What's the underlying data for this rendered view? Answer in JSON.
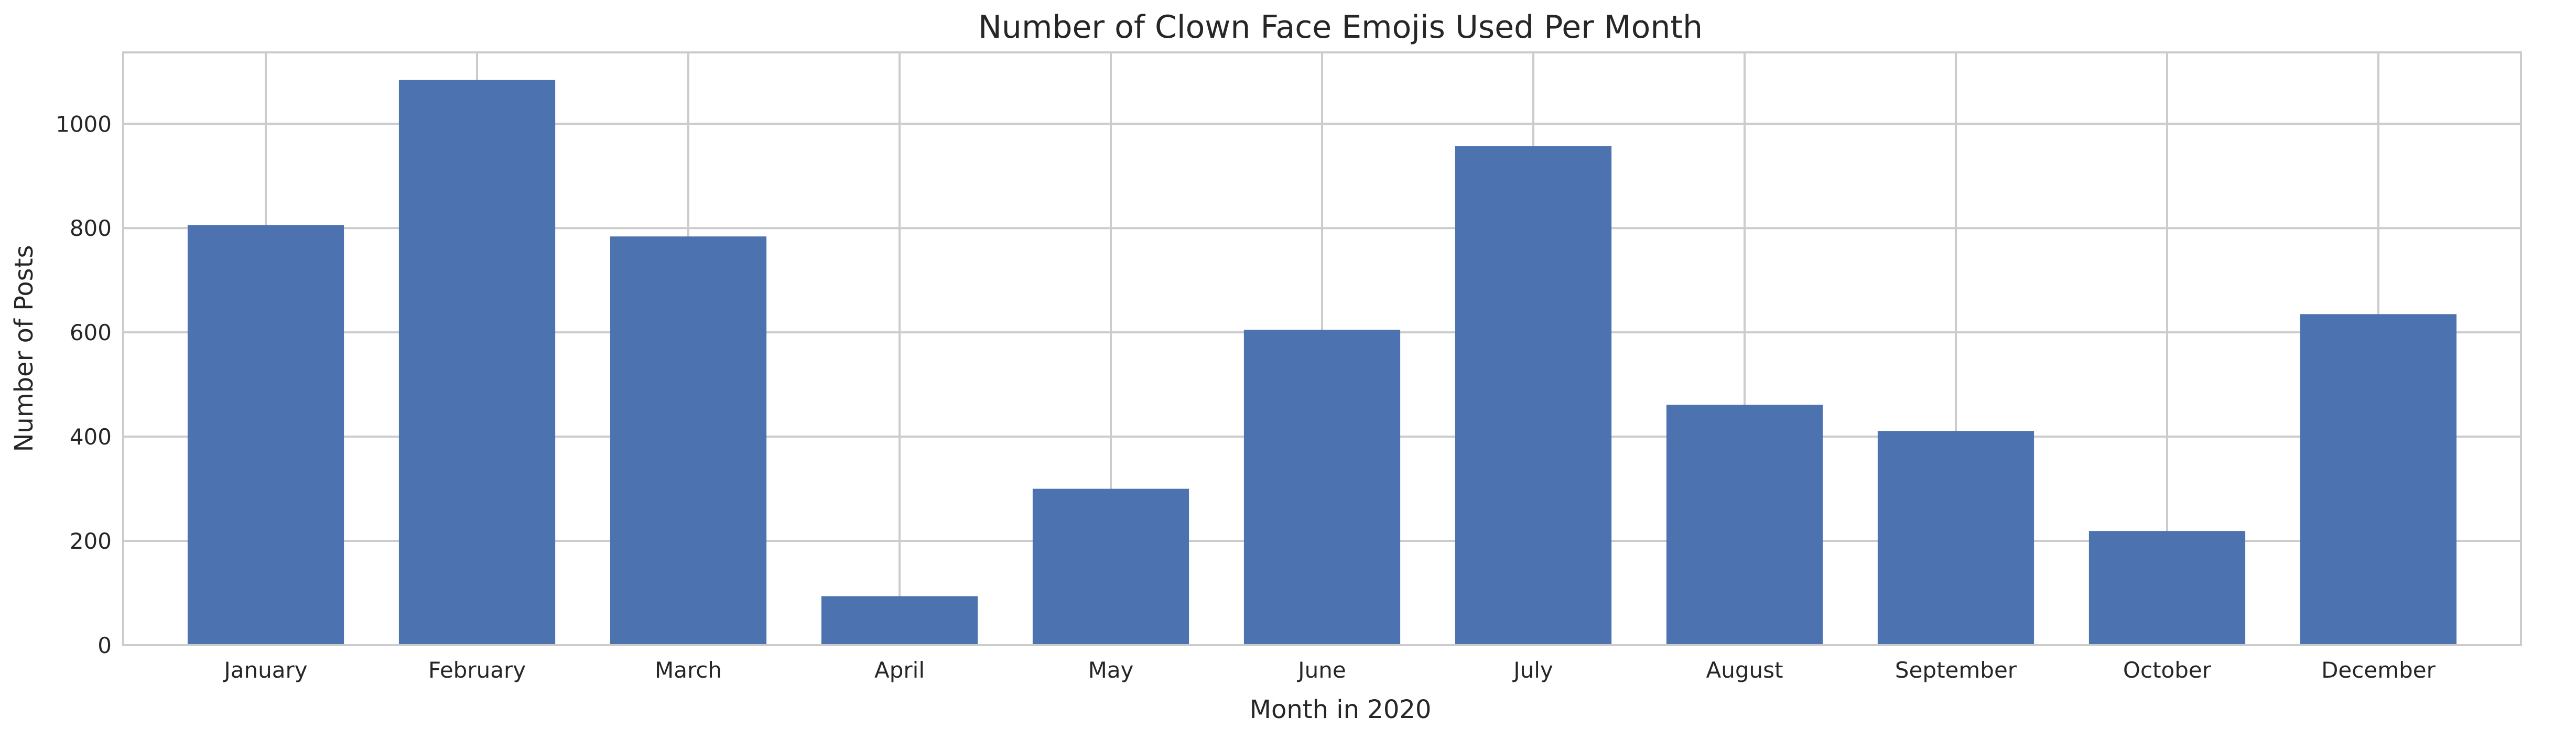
{
  "chart_data": {
    "type": "bar",
    "title": "Number of Clown Face Emojis Used Per Month",
    "xlabel": "Month in 2020",
    "ylabel": "Number of Posts",
    "categories": [
      "January",
      "February",
      "March",
      "April",
      "May",
      "June",
      "July",
      "August",
      "September",
      "October",
      "December"
    ],
    "values": [
      806,
      1084,
      784,
      94,
      300,
      605,
      957,
      461,
      411,
      219,
      635
    ],
    "ylim": [
      0,
      1137
    ],
    "yticks": [
      0,
      200,
      400,
      600,
      800,
      1000
    ],
    "grid": true,
    "colors": {
      "bar": "#4c72b0",
      "grid": "#cccccc",
      "spine": "#cccccc",
      "background": "#ffffff"
    }
  }
}
